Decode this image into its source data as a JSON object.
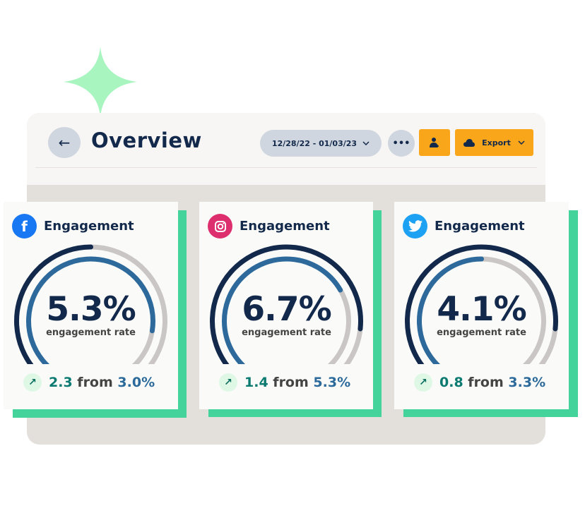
{
  "header": {
    "title": "Overview",
    "date_range": "12/28/22 - 01/03/23",
    "more_label": "•••",
    "export_label": "Export"
  },
  "colors": {
    "accent": "#f9a61a",
    "navy": "#13294b",
    "blue": "#2d6a9b",
    "track": "#c9c6c5",
    "shadow": "#45d39c",
    "sparkle": "#a8f5c0"
  },
  "cards": [
    {
      "network": "facebook",
      "icon": "facebook-icon",
      "title": "Engagement",
      "value": "5.3%",
      "label": "engagement rate",
      "change": "2.3",
      "from_word": "from",
      "previous": "3.0%",
      "outer_fill": 0.5,
      "inner_fill": 0.83,
      "color": "#1877f2"
    },
    {
      "network": "instagram",
      "icon": "instagram-icon",
      "title": "Engagement",
      "value": "6.7%",
      "label": "engagement rate",
      "change": "1.4",
      "from_word": "from",
      "previous": "5.3%",
      "outer_fill": 0.82,
      "inner_fill": 0.7,
      "color": "#dd2f6e"
    },
    {
      "network": "twitter",
      "icon": "twitter-icon",
      "title": "Engagement",
      "value": "4.1%",
      "label": "engagement rate",
      "change": "0.8",
      "from_word": "from",
      "previous": "3.3%",
      "outer_fill": 0.82,
      "inner_fill": 0.5,
      "color": "#1da1f2"
    }
  ]
}
